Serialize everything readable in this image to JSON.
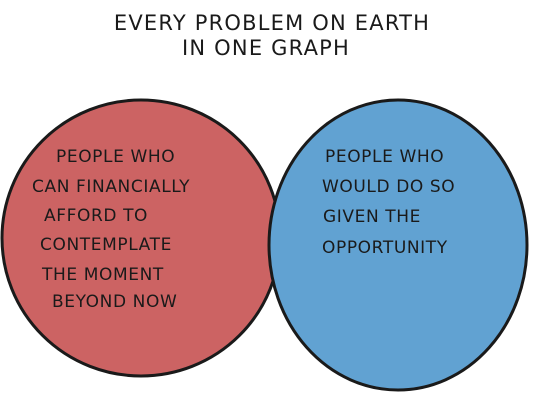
{
  "title": {
    "line1": "EVERY PROBLEM ON EARTH",
    "line2": "IN ONE GRAPH"
  },
  "venn": {
    "left": {
      "color": "#cc6363",
      "lines": [
        "PEOPLE WHO",
        "CAN FINANCIALLY",
        "AFFORD TO",
        "CONTEMPLATE",
        "THE MOMENT",
        "BEYOND NOW"
      ]
    },
    "right": {
      "color": "#61a2d2",
      "lines": [
        "PEOPLE WHO",
        "WOULD DO SO",
        "GIVEN THE",
        "OPPORTUNITY"
      ]
    },
    "outline_color": "#1a1a1a"
  }
}
